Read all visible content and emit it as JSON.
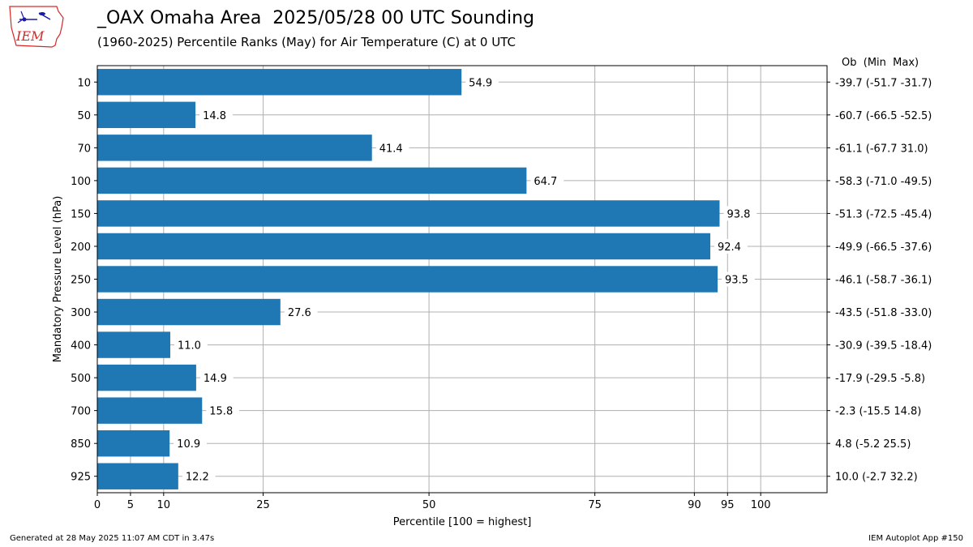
{
  "header": {
    "logo_text": "IEM",
    "title": "_OAX Omaha Area  2025/05/28 00 UTC Sounding",
    "subtitle": "(1960-2025) Percentile Ranks (May) for Air Temperature (C) at 0 UTC"
  },
  "footer": {
    "left": "Generated at 28 May 2025 11:07 AM CDT in 3.47s",
    "right": "IEM Autoplot App #150"
  },
  "colors": {
    "bar": "#1f77b4",
    "grid": "#b0b0b0",
    "logo": "#d62728",
    "logo_icon": "#1a1aa6"
  },
  "chart_data": {
    "type": "bar",
    "orientation": "horizontal",
    "ylabel": "Mandatory Pressure Level (hPa)",
    "xlabel": "Percentile [100 = highest]",
    "xlim": [
      0,
      110
    ],
    "xticks": [
      0,
      5,
      10,
      25,
      50,
      75,
      90,
      95,
      100
    ],
    "grid": true,
    "right_header": "Ob  (Min  Max)",
    "categories": [
      "10",
      "50",
      "70",
      "100",
      "150",
      "200",
      "250",
      "300",
      "400",
      "500",
      "700",
      "850",
      "925"
    ],
    "values": [
      54.9,
      14.8,
      41.4,
      64.7,
      93.8,
      92.4,
      93.5,
      27.6,
      11.0,
      14.9,
      15.8,
      10.9,
      12.2
    ],
    "value_labels": [
      "54.9",
      "14.8",
      "41.4",
      "64.7",
      "93.8",
      "92.4",
      "93.5",
      "27.6",
      "11.0",
      "14.9",
      "15.8",
      "10.9",
      "12.2"
    ],
    "right_labels": [
      "-39.7 (-51.7 -31.7)",
      "-60.7 (-66.5 -52.5)",
      "-61.1 (-67.7 31.0)",
      "-58.3 (-71.0 -49.5)",
      "-51.3 (-72.5 -45.4)",
      "-49.9 (-66.5 -37.6)",
      "-46.1 (-58.7 -36.1)",
      "-43.5 (-51.8 -33.0)",
      "-30.9 (-39.5 -18.4)",
      "-17.9 (-29.5 -5.8)",
      "-2.3 (-15.5 14.8)",
      "4.8 (-5.2 25.5)",
      "10.0 (-2.7 32.2)"
    ]
  }
}
